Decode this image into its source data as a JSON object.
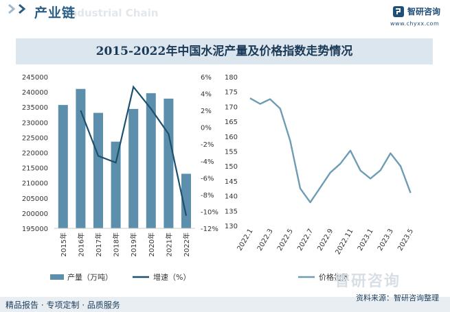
{
  "header": {
    "section_title": "产业链",
    "section_subtitle": "Industrial Chain",
    "brand_name": "智研咨询",
    "brand_url": "www.chyxx.com"
  },
  "colors": {
    "bar": "#5b8fab",
    "line": "#1d4f6e",
    "price_line": "#6d9cb3",
    "title_band": "#dce6ee"
  },
  "chart_data": [
    {
      "type": "bar",
      "title": "2015-2022年中国水泥产量及价格指数走势情况",
      "categories": [
        "2015年",
        "2016年",
        "2017年",
        "2018年",
        "2019年",
        "2020年",
        "2021年",
        "2022年"
      ],
      "series": [
        {
          "name": "产量（万吨）",
          "type": "bar",
          "axis": "left",
          "values": [
            235700,
            241000,
            233100,
            223600,
            234400,
            239600,
            237800,
            213000
          ]
        },
        {
          "name": "增速（%）",
          "type": "line",
          "axis": "right",
          "values": [
            null,
            2.0,
            -3.4,
            -4.2,
            4.8,
            2.2,
            -0.8,
            -10.5
          ]
        }
      ],
      "left_axis": {
        "ylim": [
          195000,
          245000
        ],
        "ticks": [
          "245000",
          "240000",
          "235000",
          "230000",
          "225000",
          "220000",
          "215000",
          "210000",
          "205000",
          "200000",
          "195000"
        ]
      },
      "right_axis": {
        "ylim": [
          -12,
          6
        ],
        "ticks": [
          "6%",
          "4%",
          "2%",
          "0%",
          "-2%",
          "-4%",
          "-6%",
          "-8%",
          "-10%",
          "-12%"
        ]
      },
      "legend": {
        "position": "bottom",
        "items": [
          "产量（万吨）",
          "增速（%）"
        ]
      }
    },
    {
      "type": "line",
      "x": [
        "2022.1",
        "2022.2",
        "2022.3",
        "2022.4",
        "2022.5",
        "2022.6",
        "2022.7",
        "2022.8",
        "2022.9",
        "2022.10",
        "2022.11",
        "2022.12",
        "2023.1",
        "2023.2",
        "2023.3",
        "2023.4",
        "2023.5"
      ],
      "x_tick_labels": [
        "2022.1",
        "2022.3",
        "2022.5",
        "2022.7",
        "2022.9",
        "2022.11",
        "2023.1",
        "2023.3",
        "2023.5"
      ],
      "series": [
        {
          "name": "价格指数",
          "values": [
            172.8,
            170.9,
            172.5,
            169.3,
            158.5,
            142.5,
            137.8,
            142.8,
            147.8,
            150.8,
            155.2,
            148.5,
            145.8,
            148.6,
            154.3,
            150.0,
            141.0
          ]
        }
      ],
      "ylim": [
        130,
        180
      ],
      "y_ticks": [
        "180",
        "175",
        "170",
        "165",
        "160",
        "155",
        "150",
        "145",
        "140",
        "135",
        "130"
      ],
      "legend": {
        "position": "bottom",
        "items": [
          "价格指数"
        ]
      }
    }
  ],
  "footer": {
    "left": "精品报告 · 专项定制 · 品质服务",
    "source": "资料来源：智研咨询整理",
    "watermark": "智研咨询"
  }
}
